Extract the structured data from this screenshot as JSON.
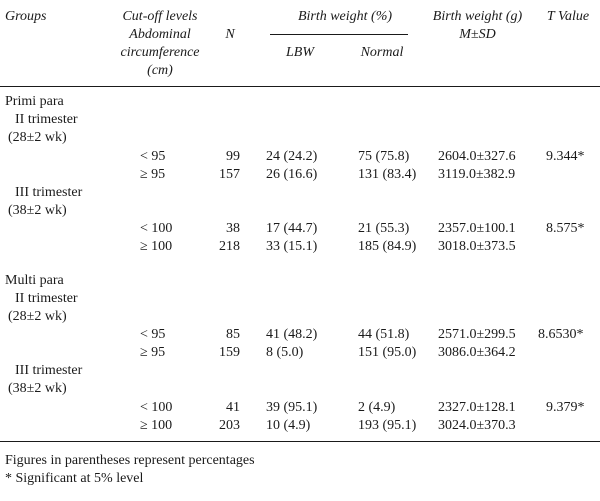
{
  "header": {
    "groups": "Groups",
    "cutoff_l1": "Cut-off levels",
    "cutoff_l2": "Abdominal",
    "cutoff_l3": "circumference",
    "cutoff_l4": "(cm)",
    "n": "N",
    "bw_pct": "Birth weight (%)",
    "lbw": "LBW",
    "normal": "Normal",
    "bw_g_l1": "Birth weight (g)",
    "bw_g_l2": "M±SD",
    "tvalue": "T Value"
  },
  "sections": [
    {
      "title": "Primi para",
      "trimesters": [
        {
          "name": "II trimester",
          "weeks": "(28±2 wk)",
          "rows": [
            {
              "cutoff": "< 95",
              "n": "99",
              "lbw": "24 (24.2)",
              "normal": "75 (75.8)",
              "msd": "2604.0±327.6",
              "t": "9.344*"
            },
            {
              "cutoff": "≥ 95",
              "n": "157",
              "lbw": "26 (16.6)",
              "normal": "131 (83.4)",
              "msd": "3119.0±382.9",
              "t": ""
            }
          ]
        },
        {
          "name": "III trimester",
          "weeks": "(38±2 wk)",
          "rows": [
            {
              "cutoff": "< 100",
              "n": "38",
              "lbw": "17 (44.7)",
              "normal": "21 (55.3)",
              "msd": "2357.0±100.1",
              "t": "8.575*"
            },
            {
              "cutoff": "≥ 100",
              "n": "218",
              "lbw": "33 (15.1)",
              "normal": "185 (84.9)",
              "msd": "3018.0±373.5",
              "t": ""
            }
          ]
        }
      ]
    },
    {
      "title": "Multi para",
      "trimesters": [
        {
          "name": "II trimester",
          "weeks": "(28±2 wk)",
          "rows": [
            {
              "cutoff": "< 95",
              "n": "85",
              "lbw": "41 (48.2)",
              "normal": "44 (51.8)",
              "msd": "2571.0±299.5",
              "t": "8.6530*"
            },
            {
              "cutoff": "≥ 95",
              "n": "159",
              "lbw": "8 (5.0)",
              "normal": "151 (95.0)",
              "msd": "3086.0±364.2",
              "t": ""
            }
          ]
        },
        {
          "name": "III trimester",
          "weeks": "(38±2 wk)",
          "rows": [
            {
              "cutoff": "< 100",
              "n": "41",
              "lbw": "39 (95.1)",
              "normal": "2 (4.9)",
              "msd": "2327.0±128.1",
              "t": "9.379*"
            },
            {
              "cutoff": "≥ 100",
              "n": "203",
              "lbw": "10 (4.9)",
              "normal": "193 (95.1)",
              "msd": "3024.0±370.3",
              "t": ""
            }
          ]
        }
      ]
    }
  ],
  "notes": {
    "line1": "Figures in parentheses represent percentages",
    "line2": "* Significant at 5% level"
  }
}
